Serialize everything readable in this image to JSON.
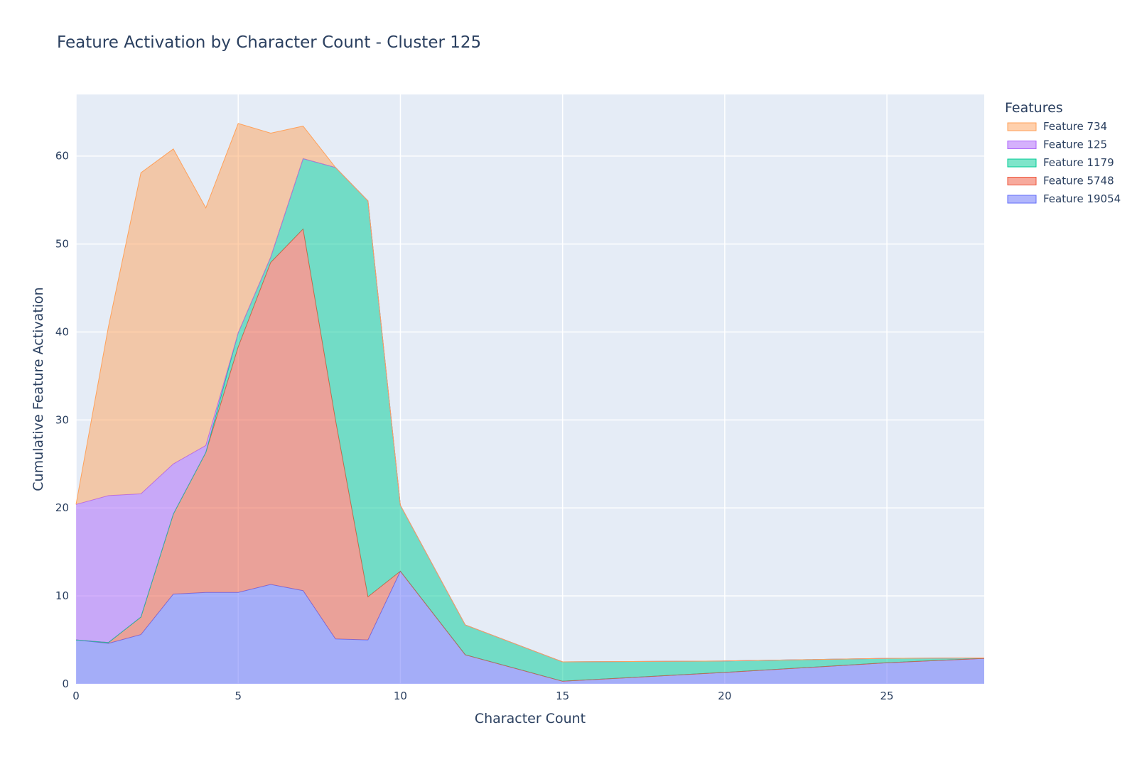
{
  "chart_data": {
    "type": "area",
    "stacked": true,
    "title": "Feature Activation by Character Count - Cluster 125",
    "xlabel": "Character Count",
    "ylabel": "Cumulative Feature Activation",
    "xlim": [
      0,
      28
    ],
    "ylim": [
      0,
      67
    ],
    "x_ticks": [
      0,
      5,
      10,
      15,
      20,
      25
    ],
    "y_ticks": [
      0,
      10,
      20,
      30,
      40,
      50,
      60
    ],
    "grid": true,
    "legend_title": "Features",
    "legend_position": "top-right",
    "x": [
      0,
      1,
      2,
      3,
      4,
      5,
      6,
      7,
      8,
      9,
      10,
      12,
      15,
      20,
      25,
      28
    ],
    "series": [
      {
        "name": "Feature 19054",
        "color": "#636efa",
        "values": [
          5.0,
          4.6,
          5.6,
          10.2,
          10.4,
          10.4,
          11.3,
          10.6,
          5.1,
          5.0,
          12.8,
          3.3,
          0.3,
          1.3,
          2.4,
          2.9
        ]
      },
      {
        "name": "Feature 5748",
        "color": "#ef553b",
        "values": [
          0.0,
          0.1,
          2.0,
          9.1,
          15.9,
          27.9,
          36.6,
          41.1,
          24.9,
          4.9,
          0.0,
          0.0,
          0.0,
          0.0,
          0.0,
          0.0
        ]
      },
      {
        "name": "Feature 1179",
        "color": "#00cc96",
        "values": [
          0.0,
          0.0,
          0.0,
          0.0,
          0.0,
          1.6,
          0.6,
          8.0,
          28.7,
          45.0,
          7.5,
          3.4,
          2.2,
          1.3,
          0.5,
          0.05
        ]
      },
      {
        "name": "Feature 125",
        "color": "#ab63fa",
        "values": [
          15.4,
          16.7,
          14.0,
          5.7,
          0.8,
          0.0,
          0.0,
          0.0,
          0.0,
          0.0,
          0.0,
          0.0,
          0.0,
          0.0,
          0.0,
          0.0
        ]
      },
      {
        "name": "Feature 734",
        "color": "#ffa15a",
        "values": [
          0.0,
          19.2,
          36.5,
          35.8,
          27.0,
          23.8,
          14.1,
          3.7,
          0.0,
          0.0,
          0.0,
          0.0,
          0.0,
          0.0,
          0.0,
          0.0
        ]
      }
    ]
  }
}
